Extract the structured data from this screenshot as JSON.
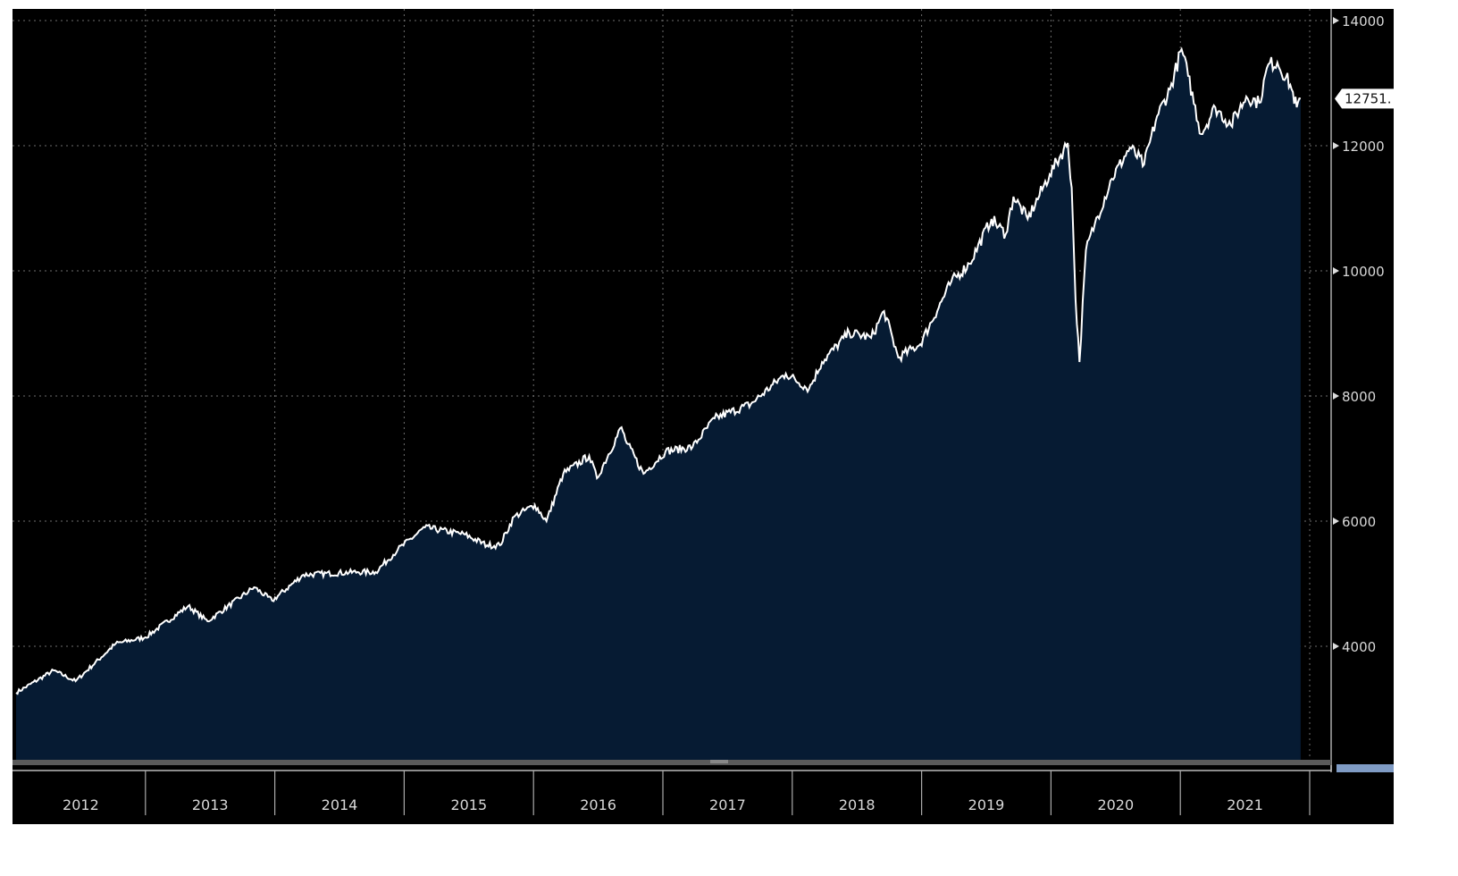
{
  "chart_data": {
    "type": "area",
    "title": "",
    "xlabel": "",
    "ylabel": "",
    "x_tick_labels": [
      "2012",
      "2013",
      "2014",
      "2015",
      "2016",
      "2017",
      "2018",
      "2019",
      "2020",
      "2021"
    ],
    "y_tick_labels": [
      "4000",
      "6000",
      "8000",
      "10000",
      "12000",
      "14000"
    ],
    "y_ticks": [
      4000,
      6000,
      8000,
      10000,
      12000,
      14000
    ],
    "ylim": [
      2190,
      14190
    ],
    "xlim": [
      2012.0,
      2022.05
    ],
    "grid": true,
    "last_value_label": "12751.",
    "colors": {
      "background": "#000000",
      "fill": "#061b33",
      "line": "#ffffff",
      "grid": "#6e6e6e",
      "axis_text": "#d8d8d8"
    },
    "series": [
      {
        "x": [
          2012.0,
          2012.29,
          2012.46,
          2012.77,
          2013.0,
          2013.33,
          2013.48,
          2013.84,
          2013.98,
          2014.22,
          2014.64,
          2014.78,
          2014.95,
          2015.16,
          2015.47,
          2015.64,
          2015.74,
          2015.85,
          2016.01,
          2016.1,
          2016.23,
          2016.43,
          2016.49,
          2016.68,
          2016.71,
          2016.85,
          2017.02,
          2017.23,
          2017.4,
          2017.68,
          2017.95,
          2018.13,
          2018.23,
          2018.44,
          2018.61,
          2018.71,
          2018.82,
          2018.99,
          2019.23,
          2019.37,
          2019.54,
          2019.65,
          2019.71,
          2019.82,
          2019.99,
          2020.13,
          2020.16,
          2020.19,
          2020.22,
          2020.27,
          2020.34,
          2020.47,
          2020.61,
          2020.72,
          2020.82,
          2020.92,
          2021.01,
          2021.06,
          2021.16,
          2021.27,
          2021.39,
          2021.51,
          2021.61,
          2021.68,
          2021.75,
          2021.85,
          2021.9,
          2021.93
        ],
        "y": [
          3257,
          3614,
          3443,
          4043,
          4143,
          4643,
          4400,
          4943,
          4729,
          5143,
          5186,
          5186,
          5543,
          5900,
          5786,
          5614,
          5614,
          6071,
          6257,
          6000,
          6757,
          7043,
          6686,
          7500,
          7300,
          6757,
          7114,
          7186,
          7643,
          7871,
          8357,
          8114,
          8543,
          9014,
          8929,
          9357,
          8614,
          8829,
          9829,
          10114,
          10829,
          10586,
          11186,
          10829,
          11543,
          12043,
          11329,
          9543,
          8543,
          10329,
          10757,
          11471,
          11971,
          11700,
          12471,
          12900,
          13543,
          13114,
          12186,
          12614,
          12329,
          12786,
          12686,
          13300,
          13328,
          12971,
          12614,
          12751
        ]
      }
    ]
  }
}
